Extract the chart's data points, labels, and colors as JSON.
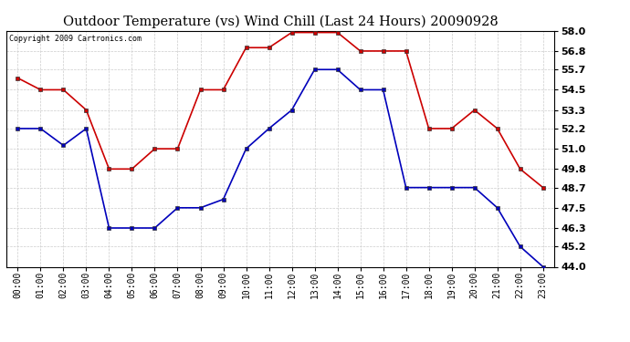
{
  "title": "Outdoor Temperature (vs) Wind Chill (Last 24 Hours) 20090928",
  "copyright": "Copyright 2009 Cartronics.com",
  "hours": [
    0,
    1,
    2,
    3,
    4,
    5,
    6,
    7,
    8,
    9,
    10,
    11,
    12,
    13,
    14,
    15,
    16,
    17,
    18,
    19,
    20,
    21,
    22,
    23
  ],
  "hour_labels": [
    "00:00",
    "01:00",
    "02:00",
    "03:00",
    "04:00",
    "05:00",
    "06:00",
    "07:00",
    "08:00",
    "09:00",
    "10:00",
    "11:00",
    "12:00",
    "13:00",
    "14:00",
    "15:00",
    "16:00",
    "17:00",
    "18:00",
    "19:00",
    "20:00",
    "21:00",
    "22:00",
    "23:00"
  ],
  "temp": [
    55.2,
    54.5,
    54.5,
    53.3,
    49.8,
    49.8,
    51.0,
    51.0,
    54.5,
    54.5,
    57.0,
    57.0,
    57.9,
    57.9,
    57.9,
    56.8,
    56.8,
    56.8,
    52.2,
    52.2,
    53.3,
    52.2,
    49.8,
    48.7
  ],
  "windchill": [
    52.2,
    52.2,
    51.2,
    52.2,
    46.3,
    46.3,
    46.3,
    47.5,
    47.5,
    48.0,
    51.0,
    52.2,
    53.3,
    55.7,
    55.7,
    54.5,
    54.5,
    48.7,
    48.7,
    48.7,
    48.7,
    47.5,
    45.2,
    44.0
  ],
  "temp_color": "#cc0000",
  "windchill_color": "#0000bb",
  "grid_color": "#cccccc",
  "bg_color": "#ffffff",
  "ymin": 44.0,
  "ymax": 58.0,
  "yticks": [
    44.0,
    45.2,
    46.3,
    47.5,
    48.7,
    49.8,
    51.0,
    52.2,
    53.3,
    54.5,
    55.7,
    56.8,
    58.0
  ]
}
